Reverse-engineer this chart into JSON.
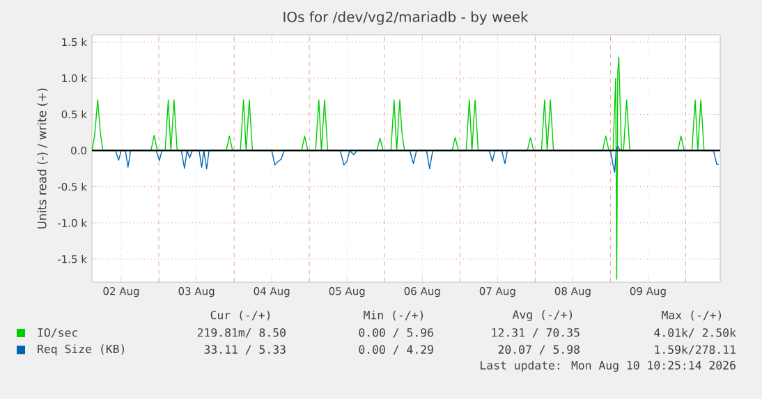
{
  "chart_data": {
    "type": "line",
    "title": "IOs for /dev/vg2/mariadb - by week",
    "ylabel": "Units read (-) / write (+)",
    "xlim": [
      "2026-08-02T02:40",
      "2026-08-10T11:00"
    ],
    "xticks": [
      {
        "value": "2026-08-02T12:00",
        "label": "02 Aug"
      },
      {
        "value": "2026-08-03T00:00",
        "label": null
      },
      {
        "value": "2026-08-03T12:00",
        "label": "03 Aug"
      },
      {
        "value": "2026-08-04T00:00",
        "label": null
      },
      {
        "value": "2026-08-04T12:00",
        "label": "04 Aug"
      },
      {
        "value": "2026-08-05T00:00",
        "label": null
      },
      {
        "value": "2026-08-05T12:00",
        "label": "05 Aug"
      },
      {
        "value": "2026-08-06T00:00",
        "label": null
      },
      {
        "value": "2026-08-06T12:00",
        "label": "06 Aug"
      },
      {
        "value": "2026-08-07T00:00",
        "label": null
      },
      {
        "value": "2026-08-07T12:00",
        "label": "07 Aug"
      },
      {
        "value": "2026-08-08T00:00",
        "label": null
      },
      {
        "value": "2026-08-08T12:00",
        "label": "08 Aug"
      },
      {
        "value": "2026-08-09T00:00",
        "label": null
      },
      {
        "value": "2026-08-09T12:00",
        "label": "09 Aug"
      },
      {
        "value": "2026-08-10T00:00",
        "label": null
      }
    ],
    "ylim": [
      -1820,
      1600
    ],
    "yticks": [
      {
        "value": -1500,
        "label": "-1.5 k"
      },
      {
        "value": -1000,
        "label": "-1.0 k"
      },
      {
        "value": -500,
        "label": "-0.5 k"
      },
      {
        "value": 0,
        "label": "0.0"
      },
      {
        "value": 500,
        "label": "0.5 k"
      },
      {
        "value": 1000,
        "label": "1.0 k"
      },
      {
        "value": 1500,
        "label": "1.5 k"
      }
    ],
    "grid": true,
    "legend": "bottom",
    "marker": "none",
    "line_style": "solid",
    "ref_lines": [
      {
        "axis": "y",
        "value": 0,
        "color": "#000000"
      }
    ],
    "series": [
      {
        "name": "IO/sec",
        "color": "#00cc00",
        "x": [
          "2026-08-02T02:40",
          "2026-08-02T03:30",
          "2026-08-02T04:30",
          "2026-08-02T05:20",
          "2026-08-02T06:10",
          "2026-08-02T21:30",
          "2026-08-02T22:30",
          "2026-08-02T23:30",
          "2026-08-03T02:00",
          "2026-08-03T03:00",
          "2026-08-03T03:50",
          "2026-08-03T04:50",
          "2026-08-03T05:50",
          "2026-08-03T21:30",
          "2026-08-03T22:30",
          "2026-08-03T23:30",
          "2026-08-04T02:00",
          "2026-08-04T03:00",
          "2026-08-04T03:50",
          "2026-08-04T04:50",
          "2026-08-04T05:50",
          "2026-08-04T21:30",
          "2026-08-04T22:30",
          "2026-08-04T23:30",
          "2026-08-05T02:00",
          "2026-08-05T03:00",
          "2026-08-05T03:50",
          "2026-08-05T04:50",
          "2026-08-05T05:50",
          "2026-08-05T21:30",
          "2026-08-05T22:30",
          "2026-08-05T23:30",
          "2026-08-06T02:00",
          "2026-08-06T03:00",
          "2026-08-06T03:50",
          "2026-08-06T04:50",
          "2026-08-06T05:30",
          "2026-08-06T06:20",
          "2026-08-06T21:30",
          "2026-08-06T22:30",
          "2026-08-06T23:30",
          "2026-08-07T02:00",
          "2026-08-07T03:00",
          "2026-08-07T03:50",
          "2026-08-07T04:50",
          "2026-08-07T05:50",
          "2026-08-07T21:30",
          "2026-08-07T22:30",
          "2026-08-07T23:30",
          "2026-08-08T02:00",
          "2026-08-08T03:00",
          "2026-08-08T03:50",
          "2026-08-08T04:50",
          "2026-08-08T05:50",
          "2026-08-08T21:30",
          "2026-08-08T22:30",
          "2026-08-08T23:30",
          "2026-08-09T00:50",
          "2026-08-09T01:40",
          "2026-08-09T02:00",
          "2026-08-09T02:20",
          "2026-08-09T02:40",
          "2026-08-09T03:30",
          "2026-08-09T04:10",
          "2026-08-09T05:10",
          "2026-08-09T06:10",
          "2026-08-09T21:30",
          "2026-08-09T22:30",
          "2026-08-09T23:30",
          "2026-08-10T02:00",
          "2026-08-10T03:00",
          "2026-08-10T03:50",
          "2026-08-10T04:50",
          "2026-08-10T05:50",
          "2026-08-10T10:30"
        ],
        "values": [
          0,
          200,
          700,
          250,
          0,
          0,
          210,
          0,
          0,
          700,
          0,
          700,
          0,
          0,
          200,
          0,
          0,
          700,
          0,
          700,
          0,
          0,
          200,
          0,
          0,
          700,
          0,
          700,
          0,
          0,
          170,
          0,
          0,
          700,
          0,
          700,
          250,
          0,
          0,
          180,
          0,
          0,
          700,
          0,
          700,
          0,
          0,
          180,
          0,
          0,
          700,
          0,
          700,
          0,
          0,
          200,
          0,
          0,
          1000,
          -1780,
          1100,
          1290,
          0,
          0,
          700,
          0,
          0,
          200,
          0,
          0,
          700,
          0,
          700,
          0,
          0
        ]
      },
      {
        "name": "Req Size (KB)",
        "color": "#0066b3",
        "x": [
          "2026-08-02T02:40",
          "2026-08-02T10:10",
          "2026-08-02T11:10",
          "2026-08-02T12:00",
          "2026-08-02T13:20",
          "2026-08-02T14:10",
          "2026-08-02T15:00",
          "2026-08-02T23:10",
          "2026-08-03T00:10",
          "2026-08-03T01:00",
          "2026-08-03T07:10",
          "2026-08-03T08:10",
          "2026-08-03T09:00",
          "2026-08-03T09:50",
          "2026-08-03T10:40",
          "2026-08-03T12:50",
          "2026-08-03T13:40",
          "2026-08-03T14:20",
          "2026-08-03T15:15",
          "2026-08-03T16:00",
          "2026-08-04T12:00",
          "2026-08-04T13:00",
          "2026-08-04T14:00",
          "2026-08-04T15:00",
          "2026-08-04T16:00",
          "2026-08-05T09:50",
          "2026-08-05T11:00",
          "2026-08-05T12:00",
          "2026-08-05T12:50",
          "2026-08-05T14:10",
          "2026-08-05T15:10",
          "2026-08-06T08:00",
          "2026-08-06T09:10",
          "2026-08-06T10:10",
          "2026-08-06T13:20",
          "2026-08-06T14:20",
          "2026-08-06T15:20",
          "2026-08-07T09:20",
          "2026-08-07T10:20",
          "2026-08-07T11:10",
          "2026-08-07T13:20",
          "2026-08-07T14:20",
          "2026-08-07T15:10",
          "2026-08-09T00:00",
          "2026-08-09T00:50",
          "2026-08-09T01:20",
          "2026-08-09T01:50",
          "2026-08-09T02:20",
          "2026-08-09T03:10",
          "2026-08-10T08:50",
          "2026-08-10T09:55",
          "2026-08-10T10:30"
        ],
        "values": [
          0,
          0,
          -135,
          0,
          0,
          -230,
          0,
          0,
          -140,
          0,
          0,
          -245,
          0,
          -100,
          0,
          0,
          -235,
          0,
          -250,
          0,
          0,
          -200,
          -150,
          -120,
          0,
          0,
          -200,
          -150,
          0,
          -60,
          0,
          0,
          -180,
          0,
          0,
          -250,
          0,
          0,
          -150,
          0,
          0,
          -180,
          0,
          0,
          -200,
          -300,
          0,
          60,
          0,
          0,
          -190,
          -190
        ]
      }
    ],
    "annotations": [
      "Cur (-/+)",
      "Min (-/+)",
      "Avg (-/+)",
      "Max (-/+)",
      "219.81m/ 8.50",
      "0.00 / 5.96",
      "12.31 / 70.35",
      "4.01k/ 2.50k",
      "33.11 / 5.33",
      "0.00 / 4.29",
      "20.07 / 5.98",
      "1.59k/278.11",
      "Last update: Mon Aug 10 10:25:14 2026"
    ]
  }
}
